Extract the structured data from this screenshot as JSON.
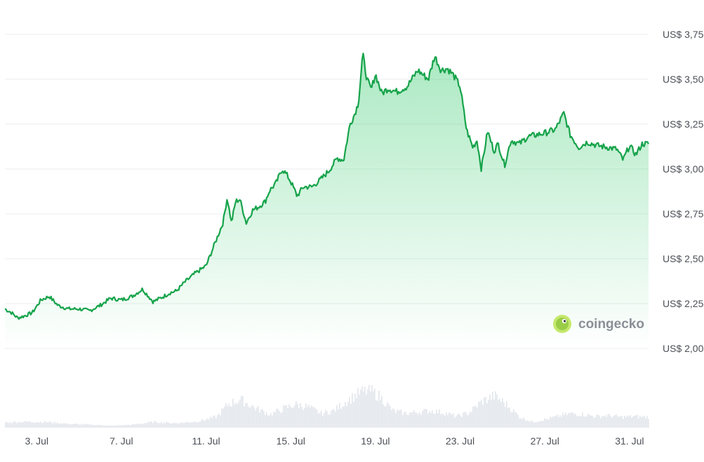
{
  "chart_data": {
    "type": "area",
    "currency_prefix": "US$ ",
    "y_ticks": [
      {
        "value": 3.75,
        "label": "US$ 3,75"
      },
      {
        "value": 3.5,
        "label": "US$ 3,50"
      },
      {
        "value": 3.25,
        "label": "US$ 3,25"
      },
      {
        "value": 3.0,
        "label": "US$ 3,00"
      },
      {
        "value": 2.75,
        "label": "US$ 2,75"
      },
      {
        "value": 2.5,
        "label": "US$ 2,50"
      },
      {
        "value": 2.25,
        "label": "US$ 2,25"
      },
      {
        "value": 2.0,
        "label": "US$ 2,00"
      }
    ],
    "ylim": [
      2.0,
      3.75
    ],
    "x_ticks": [
      {
        "day": 3,
        "label": "3. Jul"
      },
      {
        "day": 7,
        "label": "7. Jul"
      },
      {
        "day": 11,
        "label": "11. Jul"
      },
      {
        "day": 15,
        "label": "15. Jul"
      },
      {
        "day": 19,
        "label": "19. Jul"
      },
      {
        "day": 23,
        "label": "23. Jul"
      },
      {
        "day": 27,
        "label": "27. Jul"
      },
      {
        "day": 31,
        "label": "31. Jul"
      }
    ],
    "xlim": [
      1.5,
      31.9
    ],
    "grid": true,
    "line_color": "#16a34a",
    "fill_color": "#22c55e",
    "price": {
      "day": [
        1.5,
        1.8,
        2.1,
        2.4,
        2.8,
        3.2,
        3.6,
        4.0,
        4.5,
        5.0,
        5.5,
        6.0,
        6.5,
        7.0,
        7.5,
        8.0,
        8.5,
        9.0,
        9.3,
        9.6,
        10.0,
        10.5,
        11.0,
        11.2,
        11.5,
        11.8,
        12.0,
        12.2,
        12.4,
        12.6,
        12.9,
        13.2,
        13.5,
        13.8,
        14.0,
        14.3,
        14.6,
        14.8,
        15.0,
        15.3,
        15.6,
        16.0,
        16.4,
        16.8,
        17.2,
        17.5,
        17.8,
        18.0,
        18.2,
        18.4,
        18.6,
        18.8,
        19.0,
        19.3,
        19.6,
        20.0,
        20.5,
        21.0,
        21.5,
        21.8,
        22.1,
        22.4,
        22.7,
        23.0,
        23.3,
        23.6,
        23.8,
        24.0,
        24.3,
        24.6,
        24.8,
        25.1,
        25.4,
        25.8,
        26.2,
        26.6,
        27.0,
        27.5,
        27.9,
        28.2,
        28.6,
        29.0,
        29.5,
        30.0,
        30.4,
        30.7,
        31.0,
        31.3,
        31.6,
        31.9
      ],
      "price": [
        2.22,
        2.2,
        2.17,
        2.18,
        2.2,
        2.27,
        2.29,
        2.24,
        2.22,
        2.22,
        2.21,
        2.24,
        2.28,
        2.27,
        2.29,
        2.33,
        2.26,
        2.29,
        2.31,
        2.32,
        2.37,
        2.42,
        2.46,
        2.52,
        2.61,
        2.7,
        2.84,
        2.7,
        2.82,
        2.83,
        2.7,
        2.77,
        2.79,
        2.82,
        2.88,
        2.92,
        3.0,
        2.97,
        2.93,
        2.85,
        2.9,
        2.9,
        2.94,
        2.99,
        3.06,
        3.05,
        3.25,
        3.3,
        3.37,
        3.64,
        3.5,
        3.44,
        3.53,
        3.42,
        3.45,
        3.43,
        3.46,
        3.55,
        3.5,
        3.63,
        3.55,
        3.56,
        3.52,
        3.46,
        3.22,
        3.12,
        3.16,
        3.0,
        3.21,
        3.1,
        3.14,
        3.02,
        3.16,
        3.14,
        3.18,
        3.19,
        3.2,
        3.22,
        3.31,
        3.19,
        3.12,
        3.15,
        3.13,
        3.12,
        3.11,
        3.05,
        3.13,
        3.08,
        3.14,
        3.14
      ]
    },
    "volume": {
      "day": [
        1.5,
        2.5,
        3.5,
        4.5,
        5.5,
        6.5,
        7.5,
        8.5,
        9.5,
        10.5,
        11.0,
        11.5,
        12.0,
        12.6,
        13.2,
        14.0,
        14.6,
        15.2,
        15.8,
        16.4,
        17.0,
        17.6,
        18.2,
        18.7,
        19.2,
        19.8,
        20.4,
        21.0,
        21.6,
        22.2,
        22.8,
        23.4,
        24.0,
        24.6,
        25.2,
        25.8,
        26.4,
        27.0,
        27.6,
        28.2,
        28.8,
        29.4,
        30.0,
        30.6,
        31.2,
        31.9
      ],
      "level": [
        0.14,
        0.16,
        0.15,
        0.1,
        0.08,
        0.05,
        0.08,
        0.15,
        0.12,
        0.16,
        0.22,
        0.3,
        0.62,
        0.75,
        0.55,
        0.35,
        0.5,
        0.62,
        0.55,
        0.38,
        0.45,
        0.7,
        0.92,
        1.0,
        0.82,
        0.45,
        0.38,
        0.42,
        0.45,
        0.4,
        0.3,
        0.4,
        0.7,
        0.85,
        0.6,
        0.28,
        0.15,
        0.22,
        0.3,
        0.38,
        0.35,
        0.3,
        0.32,
        0.28,
        0.3,
        0.28
      ]
    }
  },
  "watermark": {
    "text": "coingecko",
    "logo_icon": "coingecko-gecko-icon"
  }
}
